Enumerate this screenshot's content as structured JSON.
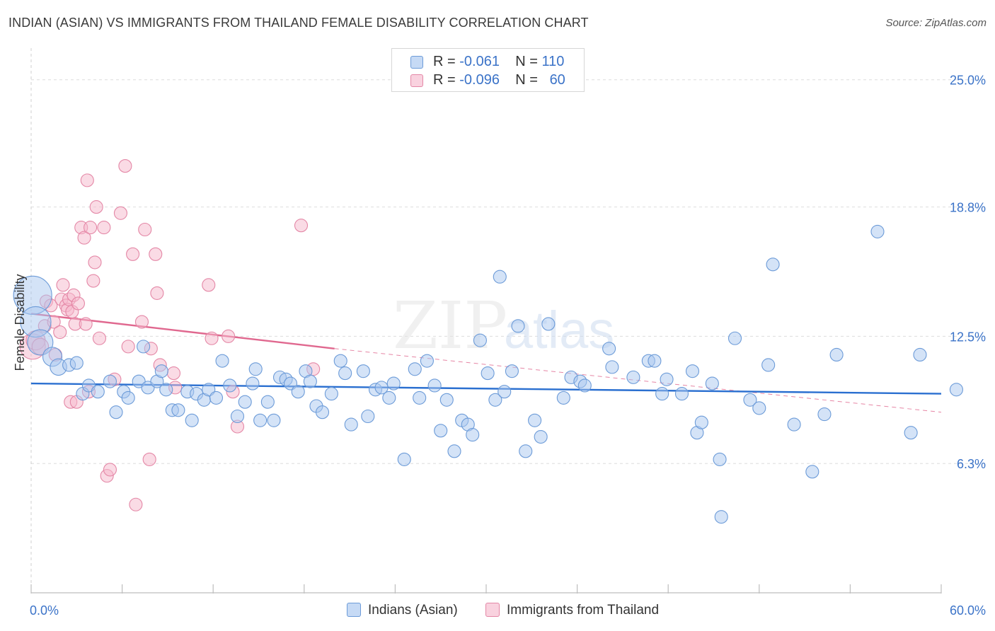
{
  "title": "INDIAN (ASIAN) VS IMMIGRANTS FROM THAILAND FEMALE DISABILITY CORRELATION CHART",
  "source": "Source: ZipAtlas.com",
  "watermark": {
    "zip": "ZIP",
    "atlas": "atlas"
  },
  "colors": {
    "blue_fill": "#a9c8ef",
    "blue_stroke": "#6c9bd8",
    "blue_line": "#2a6fd0",
    "pink_fill": "#f5b8cb",
    "pink_stroke": "#e487a6",
    "pink_line": "#e0688f",
    "grid": "#dddddd",
    "axis_label": "#3b73c8"
  },
  "legend_top": [
    {
      "r_label": "R =",
      "r_value": "-0.061",
      "n_label": "N =",
      "n_value": "110"
    },
    {
      "r_label": "R =",
      "r_value": "-0.096",
      "n_label": "N =",
      "n_value": "60"
    }
  ],
  "legend_bottom": [
    "Indians (Asian)",
    "Immigrants from Thailand"
  ],
  "chart_data": {
    "type": "scatter",
    "ylabel": "Female Disability",
    "xlim": [
      0,
      60
    ],
    "ylim": [
      0,
      26.3
    ],
    "x_tick_labels": [
      "0.0%",
      "60.0%"
    ],
    "y_ticks": [
      6.3,
      12.5,
      18.8,
      25.0
    ],
    "y_tick_labels": [
      "6.3%",
      "12.5%",
      "18.8%",
      "25.0%"
    ],
    "grid": "horizontal-dashed",
    "legend_placement": "top-center",
    "series": [
      {
        "name": "Indians (Asian)",
        "trend": {
          "x": [
            0,
            60
          ],
          "y": [
            10.2,
            9.7
          ],
          "style": "solid"
        },
        "points": [
          [
            0.1,
            14.5,
            3
          ],
          [
            0.3,
            13.2,
            2.4
          ],
          [
            0.6,
            12.2,
            2
          ],
          [
            1.4,
            11.5,
            1.5
          ],
          [
            1.8,
            11.0,
            1.3
          ],
          [
            2.5,
            11.1,
            1
          ],
          [
            3.0,
            11.2,
            1
          ],
          [
            3.4,
            9.7,
            1
          ],
          [
            3.8,
            10.1,
            1
          ],
          [
            4.4,
            9.8,
            1
          ],
          [
            5.2,
            10.3,
            1
          ],
          [
            5.6,
            8.8,
            1
          ],
          [
            6.1,
            9.8,
            1
          ],
          [
            6.4,
            9.5,
            1
          ],
          [
            7.1,
            10.3,
            1
          ],
          [
            7.4,
            12.0,
            1
          ],
          [
            7.7,
            10.0,
            1
          ],
          [
            8.3,
            10.3,
            1
          ],
          [
            8.6,
            10.8,
            1
          ],
          [
            8.9,
            9.9,
            1
          ],
          [
            9.3,
            8.9,
            1
          ],
          [
            9.7,
            8.9,
            1
          ],
          [
            10.3,
            9.8,
            1
          ],
          [
            10.6,
            8.4,
            1
          ],
          [
            10.9,
            9.7,
            1
          ],
          [
            11.4,
            9.4,
            1
          ],
          [
            11.7,
            9.9,
            1
          ],
          [
            12.2,
            9.5,
            1
          ],
          [
            12.6,
            11.3,
            1
          ],
          [
            13.1,
            10.1,
            1
          ],
          [
            13.6,
            8.6,
            1
          ],
          [
            14.1,
            9.3,
            1
          ],
          [
            14.6,
            10.2,
            1
          ],
          [
            14.8,
            10.9,
            1
          ],
          [
            15.1,
            8.4,
            1
          ],
          [
            15.6,
            9.3,
            1
          ],
          [
            16.0,
            8.4,
            1
          ],
          [
            16.4,
            10.5,
            1
          ],
          [
            16.8,
            10.4,
            1
          ],
          [
            17.1,
            10.2,
            1
          ],
          [
            17.6,
            9.8,
            1
          ],
          [
            18.1,
            10.8,
            1
          ],
          [
            18.4,
            10.3,
            1
          ],
          [
            18.8,
            9.1,
            1
          ],
          [
            19.2,
            8.8,
            1
          ],
          [
            19.8,
            9.7,
            1
          ],
          [
            20.4,
            11.3,
            1
          ],
          [
            20.7,
            10.7,
            1
          ],
          [
            21.1,
            8.2,
            1
          ],
          [
            21.9,
            10.8,
            1
          ],
          [
            22.2,
            8.6,
            1
          ],
          [
            22.7,
            9.9,
            1
          ],
          [
            23.1,
            10.0,
            1
          ],
          [
            23.6,
            9.5,
            1
          ],
          [
            23.9,
            10.2,
            1
          ],
          [
            24.6,
            6.5,
            1
          ],
          [
            25.3,
            10.9,
            1
          ],
          [
            25.6,
            9.5,
            1
          ],
          [
            26.1,
            11.3,
            1
          ],
          [
            26.6,
            10.1,
            1
          ],
          [
            27.0,
            7.9,
            1
          ],
          [
            27.4,
            9.4,
            1
          ],
          [
            27.9,
            6.9,
            1
          ],
          [
            28.4,
            8.4,
            1
          ],
          [
            28.8,
            8.2,
            1
          ],
          [
            29.1,
            7.7,
            1
          ],
          [
            29.6,
            12.3,
            1
          ],
          [
            30.1,
            10.7,
            1
          ],
          [
            30.6,
            9.4,
            1
          ],
          [
            30.9,
            15.4,
            1
          ],
          [
            31.2,
            9.8,
            1
          ],
          [
            31.7,
            10.8,
            1
          ],
          [
            32.1,
            13.0,
            1
          ],
          [
            32.6,
            6.9,
            1
          ],
          [
            33.2,
            8.4,
            1
          ],
          [
            33.6,
            7.6,
            1
          ],
          [
            34.1,
            13.1,
            1
          ],
          [
            35.1,
            9.5,
            1
          ],
          [
            35.6,
            10.5,
            1
          ],
          [
            36.2,
            10.3,
            1
          ],
          [
            36.5,
            10.1,
            1
          ],
          [
            38.1,
            11.9,
            1
          ],
          [
            38.3,
            11.0,
            1
          ],
          [
            39.7,
            10.5,
            1
          ],
          [
            40.7,
            11.3,
            1
          ],
          [
            41.1,
            11.3,
            1
          ],
          [
            41.6,
            9.7,
            1
          ],
          [
            41.9,
            10.4,
            1
          ],
          [
            42.9,
            9.7,
            1
          ],
          [
            43.6,
            10.8,
            1
          ],
          [
            43.9,
            7.8,
            1
          ],
          [
            44.2,
            8.3,
            1
          ],
          [
            44.9,
            10.2,
            1
          ],
          [
            45.4,
            6.5,
            1
          ],
          [
            45.5,
            3.7,
            1
          ],
          [
            46.4,
            12.4,
            1
          ],
          [
            47.4,
            9.4,
            1
          ],
          [
            48.0,
            9.0,
            1
          ],
          [
            48.6,
            11.1,
            1
          ],
          [
            48.9,
            16.0,
            1
          ],
          [
            50.3,
            8.2,
            1
          ],
          [
            51.5,
            5.9,
            1
          ],
          [
            52.3,
            8.7,
            1
          ],
          [
            53.1,
            11.6,
            1
          ],
          [
            55.8,
            17.6,
            1
          ],
          [
            58.0,
            7.8,
            1
          ],
          [
            58.6,
            11.6,
            1
          ],
          [
            61.0,
            9.9,
            1
          ]
        ]
      },
      {
        "name": "Immigrants from Thailand",
        "trend": {
          "x": [
            0,
            20
          ],
          "y": [
            13.6,
            11.9
          ],
          "style": "solid",
          "extended_x": [
            20,
            60
          ],
          "extended_y": [
            11.9,
            8.8
          ],
          "extended_style": "dashed"
        },
        "points": [
          [
            0.1,
            12.0,
            2
          ],
          [
            0.3,
            12.3,
            1.5
          ],
          [
            0.6,
            12.0,
            1.3
          ],
          [
            0.9,
            13.0,
            1
          ],
          [
            1.0,
            14.2,
            1
          ],
          [
            1.3,
            14.0,
            1
          ],
          [
            1.5,
            13.2,
            1
          ],
          [
            1.6,
            11.6,
            1
          ],
          [
            1.9,
            12.7,
            1
          ],
          [
            2.0,
            14.3,
            1
          ],
          [
            2.1,
            15.0,
            1
          ],
          [
            2.3,
            14.0,
            1
          ],
          [
            2.4,
            13.8,
            1
          ],
          [
            2.5,
            14.3,
            1
          ],
          [
            2.6,
            9.3,
            1
          ],
          [
            2.7,
            13.7,
            1
          ],
          [
            2.8,
            14.5,
            1
          ],
          [
            2.9,
            13.1,
            1
          ],
          [
            3.0,
            9.3,
            1
          ],
          [
            3.1,
            14.1,
            1
          ],
          [
            3.3,
            17.8,
            1
          ],
          [
            3.5,
            17.3,
            1
          ],
          [
            3.6,
            13.1,
            1
          ],
          [
            3.7,
            20.1,
            1
          ],
          [
            3.8,
            9.8,
            1
          ],
          [
            3.9,
            17.8,
            1
          ],
          [
            4.1,
            15.2,
            1
          ],
          [
            4.2,
            16.1,
            1
          ],
          [
            4.3,
            18.8,
            1
          ],
          [
            4.5,
            12.4,
            1
          ],
          [
            4.8,
            17.8,
            1
          ],
          [
            5.0,
            5.7,
            1
          ],
          [
            5.2,
            6.0,
            1
          ],
          [
            5.5,
            10.4,
            1
          ],
          [
            5.9,
            18.5,
            1
          ],
          [
            6.2,
            20.8,
            1
          ],
          [
            6.4,
            12.0,
            1
          ],
          [
            6.7,
            16.5,
            1
          ],
          [
            6.9,
            4.3,
            1
          ],
          [
            7.3,
            13.2,
            1
          ],
          [
            7.5,
            17.7,
            1
          ],
          [
            7.8,
            6.5,
            1
          ],
          [
            7.9,
            11.9,
            1
          ],
          [
            8.2,
            16.5,
            1
          ],
          [
            8.3,
            14.6,
            1
          ],
          [
            8.5,
            11.1,
            1
          ],
          [
            9.4,
            10.7,
            1
          ],
          [
            9.5,
            10.0,
            1
          ],
          [
            11.7,
            15.0,
            1
          ],
          [
            11.9,
            12.4,
            1
          ],
          [
            13.0,
            12.5,
            1
          ],
          [
            13.3,
            9.8,
            1
          ],
          [
            13.6,
            8.1,
            1
          ],
          [
            17.8,
            17.9,
            1
          ],
          [
            18.6,
            10.9,
            1
          ]
        ]
      }
    ]
  }
}
